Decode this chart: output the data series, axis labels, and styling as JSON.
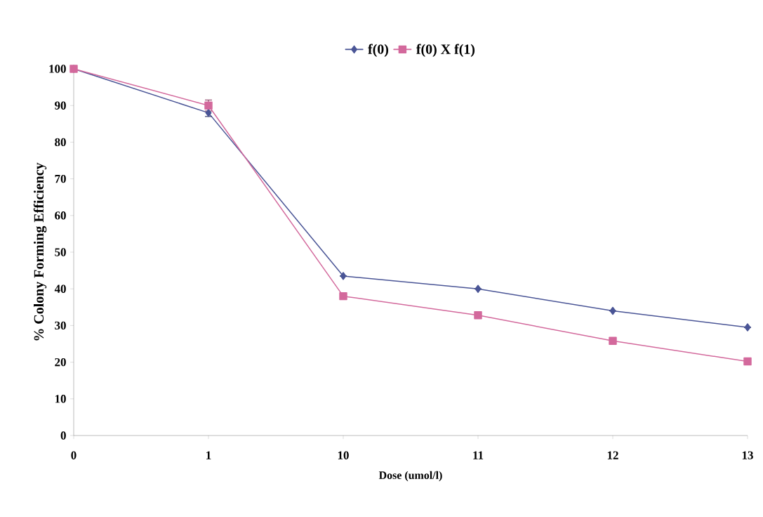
{
  "chart_data": {
    "type": "line",
    "xlabel": "Dose (umol/l)",
    "ylabel": "% Colony Forming Efficiency",
    "categories": [
      "0",
      "1",
      "10",
      "11",
      "12",
      "13"
    ],
    "series": [
      {
        "name": "f(0)",
        "color": "#4a5596",
        "marker": "diamond",
        "values": [
          100,
          88,
          43.5,
          40,
          34,
          29.5
        ],
        "errors": [
          null,
          1,
          null,
          null,
          null,
          null
        ]
      },
      {
        "name": "f(0) X f(1)",
        "color": "#d3699c",
        "marker": "square",
        "values": [
          100,
          90,
          38,
          32.8,
          25.8,
          20.2
        ],
        "errors": [
          null,
          1.5,
          null,
          null,
          null,
          null
        ]
      }
    ],
    "ylim": [
      0,
      100
    ],
    "yticks": [
      0,
      10,
      20,
      30,
      40,
      50,
      60,
      70,
      80,
      90,
      100
    ],
    "legend": "top",
    "grid": false,
    "line_style": "solid"
  }
}
